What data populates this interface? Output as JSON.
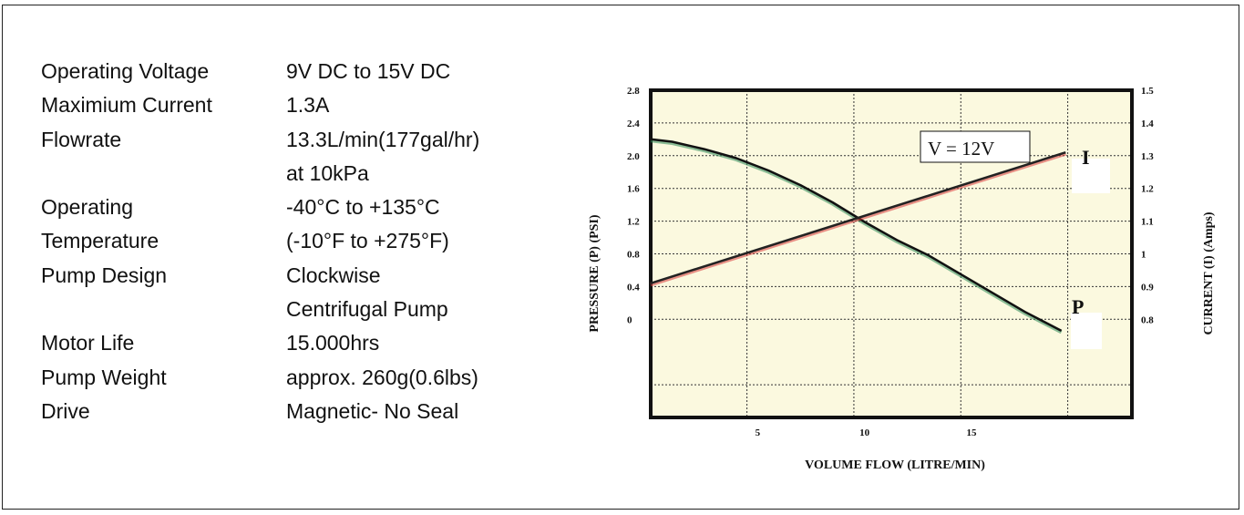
{
  "specs": [
    {
      "label": "Operating Voltage",
      "value": "9V DC to 15V DC"
    },
    {
      "label": "Maximium Current",
      "value": "1.3A"
    },
    {
      "label": "Flowrate",
      "value": "13.3L/min(177gal/hr)"
    },
    {
      "label": "",
      "value": "at 10kPa"
    },
    {
      "label": "Operating",
      "value": "-40°C to +135°C"
    },
    {
      "label": "Temperature",
      "value": "(-10°F to +275°F)"
    },
    {
      "label": "Pump Design",
      "value": "Clockwise"
    },
    {
      "label": "",
      "value": "Centrifugal Pump"
    },
    {
      "label": "Motor Life",
      "value": "15.000hrs"
    },
    {
      "label": "Pump Weight",
      "value": "approx. 260g(0.6lbs)"
    },
    {
      "label": "Drive",
      "value": "Magnetic- No Seal"
    }
  ],
  "colors": {
    "plot_background": "#fbf9df",
    "frame": "#111111",
    "grid": "#333333",
    "pressure_line": "#111111",
    "pressure_shadow": "#2e8b57",
    "current_line": "#222222",
    "current_shadow": "#d93a3a"
  },
  "chart_data": {
    "type": "line",
    "title": "",
    "xlabel": "VOLUME FLOW (LITRE/MIN)",
    "ylabel_left": "PRESSURE (P) (PSI)",
    "ylabel_right": "CURRENT (I) (Amps)",
    "annotation": "V = 12V",
    "x_ticks": [
      "5",
      "10",
      "15"
    ],
    "x_tick_values": [
      5,
      10,
      15
    ],
    "xlim": [
      0,
      22.5
    ],
    "y_left_ticks": [
      "2.8",
      "2.4",
      "2.0",
      "1.6",
      "1.2",
      "0.8",
      "0.4",
      "0"
    ],
    "y_left_tick_values": [
      2.8,
      2.4,
      2.0,
      1.6,
      1.2,
      0.8,
      0.4,
      0
    ],
    "ylim_left": [
      -1.2,
      2.8
    ],
    "y_right_ticks": [
      "1.5",
      "1.4",
      "1.3",
      "1.2",
      "1.1",
      "1",
      "0.9",
      "0.8"
    ],
    "y_right_tick_values": [
      1.5,
      1.4,
      1.3,
      1.2,
      1.1,
      1.0,
      0.9,
      0.8
    ],
    "ylim_right": [
      0.5,
      1.5
    ],
    "grid": true,
    "series": [
      {
        "name": "P",
        "axis": "left",
        "x": [
          0,
          1,
          2.5,
          4,
          5.5,
          7,
          8.5,
          10,
          11.5,
          13,
          14.5,
          16,
          17.5,
          19.2
        ],
        "y": [
          2.2,
          2.17,
          2.08,
          1.97,
          1.82,
          1.64,
          1.43,
          1.19,
          0.97,
          0.78,
          0.55,
          0.32,
          0.09,
          -0.14
        ]
      },
      {
        "name": "I",
        "axis": "right",
        "x": [
          0,
          19.4
        ],
        "y": [
          0.91,
          1.31
        ]
      }
    ]
  }
}
